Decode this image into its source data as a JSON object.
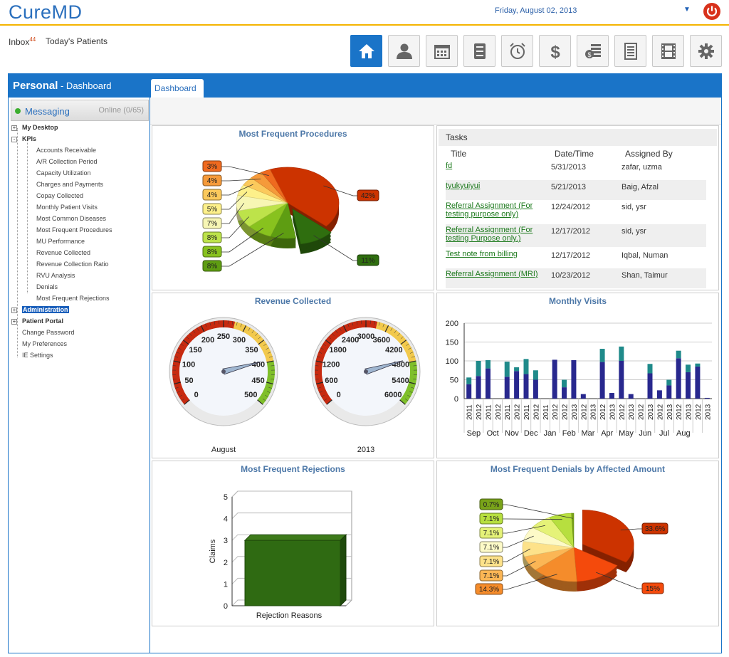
{
  "app": {
    "title": "CureMD",
    "date": "Friday, August 02, 2013"
  },
  "icons": {
    "power": "power-icon",
    "caret": "caret-down-icon"
  },
  "subnav": {
    "inbox_label": "Inbox",
    "inbox_count": "44",
    "today_label": "Today's Patients"
  },
  "toolbar": [
    "home-icon",
    "user-icon",
    "calendar-icon",
    "cabinet-icon",
    "alarm-clock-icon",
    "dollar-icon",
    "cash-register-icon",
    "document-icon",
    "film-icon",
    "gear-icon"
  ],
  "sidebar": {
    "title": "Personal",
    "subtitle": " - Dashboard",
    "messaging": {
      "label": "Messaging",
      "status": "Online (0/65)"
    },
    "tree": [
      {
        "label": "My Desktop",
        "level": 0,
        "bold": true,
        "toggle": "+"
      },
      {
        "label": "KPIs",
        "level": 0,
        "bold": true,
        "toggle": "-"
      },
      {
        "label": "Accounts Receivable",
        "level": 1
      },
      {
        "label": "A/R Collection Period",
        "level": 1
      },
      {
        "label": "Capacity Utilization",
        "level": 1
      },
      {
        "label": "Charges and Payments",
        "level": 1
      },
      {
        "label": "Copay Collected",
        "level": 1
      },
      {
        "label": "Monthly Patient Visits",
        "level": 1
      },
      {
        "label": "Most Common Diseases",
        "level": 1
      },
      {
        "label": "Most Frequent Procedures",
        "level": 1
      },
      {
        "label": "MU Performance",
        "level": 1
      },
      {
        "label": "Revenue Collected",
        "level": 1
      },
      {
        "label": "Revenue Collection Ratio",
        "level": 1
      },
      {
        "label": "RVU Analysis",
        "level": 1
      },
      {
        "label": "Denials",
        "level": 1
      },
      {
        "label": "Most Frequent Rejections",
        "level": 1
      },
      {
        "label": "Administration",
        "level": 0,
        "bold": true,
        "toggle": "+",
        "selected": true
      },
      {
        "label": "Patient Portal",
        "level": 0,
        "bold": true,
        "toggle": "+"
      },
      {
        "label": "Change Password",
        "level": 0
      },
      {
        "label": "My Preferences",
        "level": 0
      },
      {
        "label": "IE Settings",
        "level": 0
      }
    ]
  },
  "main": {
    "tab": "Dashboard"
  },
  "tasks": {
    "title": "Tasks",
    "headers": [
      "Title",
      "Date/Time",
      "Assigned By"
    ],
    "rows": [
      {
        "title": [
          "fd"
        ],
        "date": "5/31/2013",
        "by": "zafar, uzma"
      },
      {
        "title": [
          "tyukyuiyui"
        ],
        "date": "5/21/2013",
        "by": "Baig, Afzal"
      },
      {
        "title": [
          "Referral Assignment (For",
          "testing purpose only)"
        ],
        "date": "12/24/2012",
        "by": "sid, ysr"
      },
      {
        "title": [
          "Referral Assignment (For",
          "testing Purpose only.)"
        ],
        "date": "12/17/2012",
        "by": "sid, ysr"
      },
      {
        "title": [
          "Test note from billing"
        ],
        "date": "12/17/2012",
        "by": "Iqbal, Numan"
      },
      {
        "title": [
          "Referral Assignment (MRI)"
        ],
        "date": "10/23/2012",
        "by": "Shan, Taimur"
      }
    ]
  },
  "chart_data": [
    {
      "type": "pie",
      "title": "Most Frequent Procedures",
      "values": [
        42,
        11,
        8,
        8,
        8,
        7,
        5,
        4,
        4,
        3
      ],
      "labels": [
        "42%",
        "11%",
        "8%",
        "8%",
        "8%",
        "7%",
        "5%",
        "4%",
        "4%",
        "3%"
      ],
      "colors": [
        "#cc3300",
        "#2f6e0f",
        "#5e9d12",
        "#88c21e",
        "#bde34a",
        "#f7f6b4",
        "#fdf08a",
        "#fbc95c",
        "#f59a3a",
        "#ef6a1f"
      ]
    },
    {
      "type": "gauge",
      "title": "Revenue Collected",
      "gauges": [
        {
          "label": "August",
          "min": 0,
          "max": 500,
          "ticks": [
            0,
            50,
            100,
            150,
            200,
            250,
            300,
            350,
            400,
            450,
            500
          ],
          "value": 395
        },
        {
          "label": "2013",
          "min": 0,
          "max": 6000,
          "ticks": [
            0,
            600,
            1200,
            1800,
            2400,
            3000,
            3600,
            4200,
            4800,
            5400,
            6000
          ],
          "value": 4700
        }
      ]
    },
    {
      "type": "bar",
      "title": "Monthly Visits",
      "ylim": [
        0,
        200
      ],
      "yticks": [
        0,
        50,
        100,
        150,
        200
      ],
      "categories": [
        "2011",
        "2012",
        "2011",
        "2012",
        "2011",
        "2012",
        "2011",
        "2012",
        "2011",
        "2012",
        "2012",
        "2013",
        "2012",
        "2013",
        "2012",
        "2013",
        "2012",
        "2013",
        "2012",
        "2013",
        "2012",
        "2013",
        "2012",
        "2013",
        "2012",
        "2013"
      ],
      "months": [
        "Sep",
        "Oct",
        "Nov",
        "Dec",
        "Jan",
        "Feb",
        "Mar",
        "Apr",
        "May",
        "Jun",
        "Jul",
        "Aug"
      ],
      "series": [
        {
          "name": "",
          "values": [
            38,
            60,
            80,
            0,
            58,
            73,
            65,
            50,
            0,
            103,
            30,
            102,
            12,
            0,
            97,
            15,
            100,
            12,
            0,
            67,
            22,
            35,
            107,
            70,
            85,
            2
          ]
        },
        {
          "name": "",
          "values": [
            18,
            40,
            22,
            0,
            40,
            10,
            40,
            25,
            0,
            0,
            20,
            0,
            0,
            0,
            35,
            0,
            38,
            0,
            0,
            25,
            0,
            15,
            20,
            20,
            8,
            0
          ]
        }
      ],
      "colors": [
        "#28288e",
        "#1f8a8a"
      ]
    },
    {
      "type": "bar",
      "title": "Most Frequent Rejections",
      "categories": [
        "Rejection Reasons"
      ],
      "values": [
        3
      ],
      "ylabel": "Claims",
      "ylim": [
        0,
        5
      ],
      "yticks": [
        0,
        1,
        2,
        3,
        4,
        5
      ]
    },
    {
      "type": "pie",
      "title": "Most Frequent Denials by Affected Amount",
      "values": [
        33.6,
        15,
        14.3,
        7.1,
        7.1,
        7.1,
        7.1,
        7.1,
        0.7
      ],
      "labels": [
        "33.6%",
        "15%",
        "14.3%",
        "7.1%",
        "7.1%",
        "7.1%",
        "7.1%",
        "7.1%",
        "0.7%"
      ],
      "colors": [
        "#cc3300",
        "#f44a0c",
        "#f58c2b",
        "#fbb655",
        "#fde28a",
        "#fdfac8",
        "#e5f278",
        "#b7df3f",
        "#79a319"
      ]
    }
  ]
}
